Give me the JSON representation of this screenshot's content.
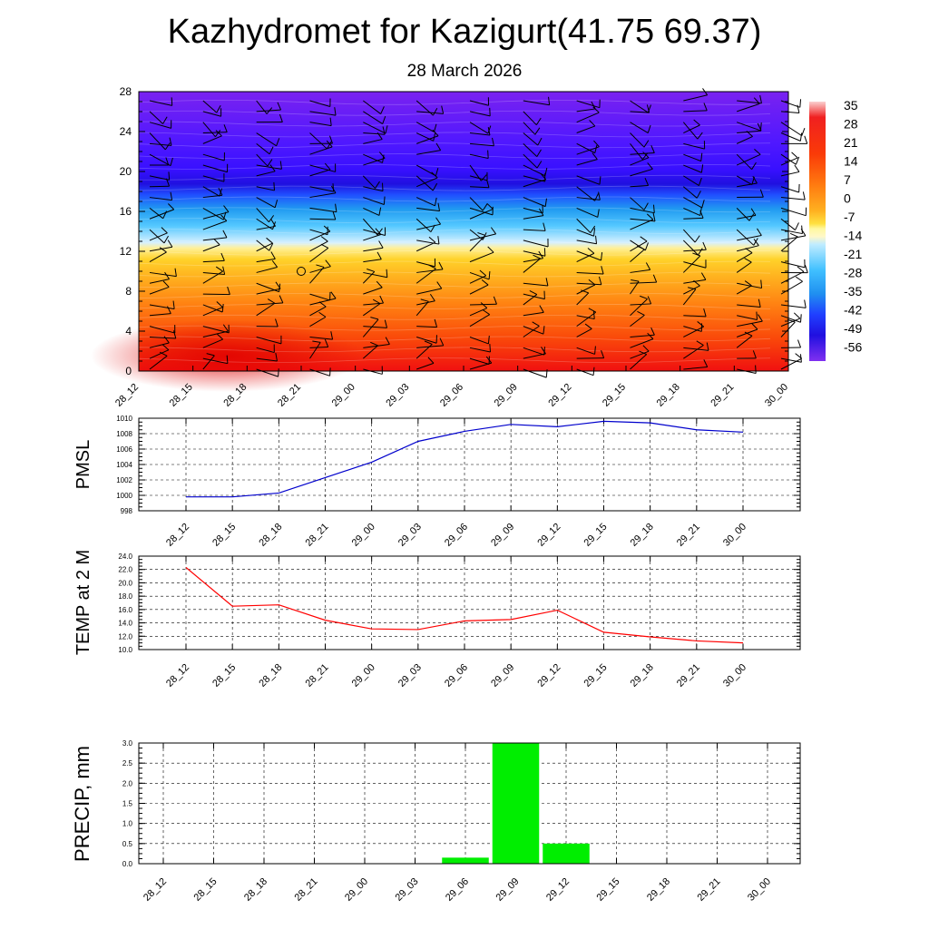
{
  "title": "Kazhydromet for Kazigurt(41.75 69.37)",
  "subtitle": "28 March 2026",
  "chart_data": [
    {
      "type": "heatmap",
      "title": "",
      "y": [
        0,
        4,
        8,
        12,
        16,
        20,
        24,
        28
      ],
      "ylim": [
        0,
        28
      ],
      "x": [
        "28_12",
        "28_15",
        "28_18",
        "28_21",
        "29_00",
        "29_03",
        "29_06",
        "29_09",
        "29_12",
        "29_15",
        "29_18",
        "29_21",
        "30_00"
      ],
      "colorbar": {
        "labels": [
          "35",
          "28",
          "21",
          "14",
          "7",
          "0",
          "-7",
          "-14",
          "-21",
          "-28",
          "-35",
          "-42",
          "-49",
          "-56"
        ],
        "values": [
          35,
          28,
          21,
          14,
          7,
          0,
          -7,
          -14,
          -21,
          -28,
          -35,
          -42,
          -49,
          -56
        ]
      },
      "legend_placement": "right",
      "overlay": "wind barbs"
    },
    {
      "type": "line",
      "ylabel": "PMSL",
      "x": [
        "28_12",
        "28_15",
        "28_18",
        "28_21",
        "29_00",
        "29_03",
        "29_06",
        "29_09",
        "29_12",
        "29_15",
        "29_18",
        "29_21",
        "30_00"
      ],
      "values": [
        999.8,
        999.8,
        1000.3,
        1002.3,
        1004.3,
        1007.0,
        1008.3,
        1009.2,
        1008.9,
        1009.6,
        1009.4,
        1008.5,
        1008.2
      ],
      "ylim": [
        998,
        1010
      ],
      "yticks": [
        "998",
        "1000",
        "1002",
        "1004",
        "1006",
        "1008",
        "1010"
      ],
      "color": "#0000cc",
      "grid": true
    },
    {
      "type": "line",
      "ylabel": "TEMP at 2 M",
      "x": [
        "28_12",
        "28_15",
        "28_18",
        "28_21",
        "29_00",
        "29_03",
        "29_06",
        "29_09",
        "29_12",
        "29_15",
        "29_18",
        "29_21",
        "30_00"
      ],
      "values": [
        22.3,
        16.5,
        16.7,
        14.4,
        13.1,
        13.0,
        14.3,
        14.5,
        15.9,
        12.6,
        11.9,
        11.3,
        11.0
      ],
      "ylim": [
        10,
        24
      ],
      "yticks": [
        "10.0",
        "12.0",
        "14.0",
        "16.0",
        "18.0",
        "20.0",
        "22.0",
        "24.0"
      ],
      "color": "#ff0000",
      "grid": true
    },
    {
      "type": "bar",
      "ylabel": "PRECIP, mm",
      "categories": [
        "28_12",
        "28_15",
        "28_18",
        "28_21",
        "29_00",
        "29_03",
        "29_06",
        "29_09",
        "29_12",
        "29_15",
        "29_18",
        "29_21",
        "30_00"
      ],
      "values": [
        0,
        0,
        0,
        0,
        0,
        0,
        0.15,
        3.0,
        0.5,
        0,
        0,
        0,
        0
      ],
      "ylim": [
        0,
        3
      ],
      "yticks": [
        "0.0",
        "0.5",
        "1.0",
        "1.5",
        "2.0",
        "2.5",
        "3.0"
      ],
      "color": "#00ee00",
      "grid": true
    }
  ]
}
